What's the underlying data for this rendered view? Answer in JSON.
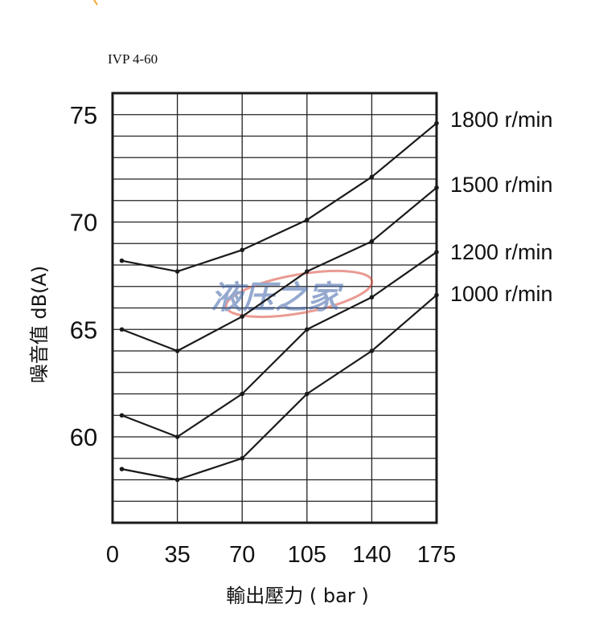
{
  "subtitle": "IVP 4-60",
  "watermark": "液压之家",
  "colors": {
    "line": "#1a1a1a",
    "grid": "#222222",
    "watermark_blue": "#3f64a8",
    "watermark_red": "#d94b3c",
    "accent": "#f5a623"
  },
  "chart_data": {
    "type": "line",
    "title": "",
    "xlabel": "輸出壓力 ( bar )",
    "ylabel": "噪音值 dB(A)",
    "x": [
      5,
      35,
      70,
      105,
      140,
      175
    ],
    "xticks": [
      0,
      35,
      70,
      105,
      140,
      175
    ],
    "xlim": [
      0,
      175
    ],
    "yticks": [
      60,
      65,
      70,
      75
    ],
    "ylim": [
      56,
      76
    ],
    "grid": true,
    "series": [
      {
        "name": "1800 r/min",
        "values": [
          68.2,
          67.7,
          68.7,
          70.1,
          72.1,
          74.6
        ]
      },
      {
        "name": "1500 r/min",
        "values": [
          65.0,
          64.0,
          65.6,
          67.7,
          69.1,
          71.6
        ]
      },
      {
        "name": "1200 r/min",
        "values": [
          61.0,
          60.0,
          62.0,
          65.0,
          66.5,
          68.6
        ]
      },
      {
        "name": "1000 r/min",
        "values": [
          58.5,
          58.0,
          59.0,
          62.0,
          64.0,
          66.6
        ]
      }
    ]
  }
}
